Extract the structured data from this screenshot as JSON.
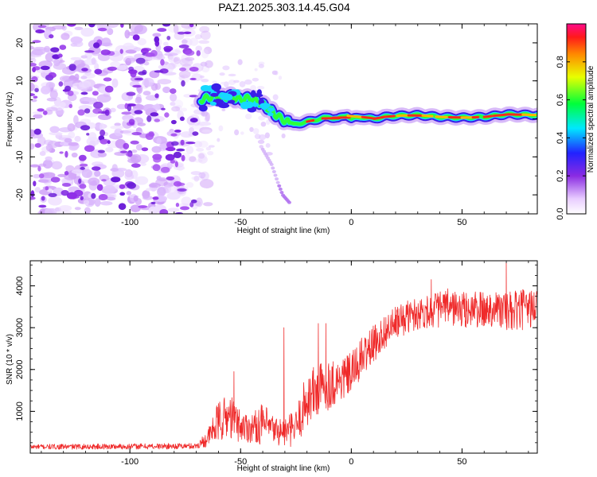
{
  "figure": {
    "title": "PAZ1.2025.303.14.45.G04"
  },
  "chart_data": [
    {
      "type": "heatmap",
      "name": "spectrogram",
      "xlabel": "Height of straight line (km)",
      "ylabel": "Frequency (Hz)",
      "xlim": [
        -145,
        84
      ],
      "ylim": [
        -25,
        25
      ],
      "xticks": [
        -100,
        -50,
        0,
        50
      ],
      "xtick_labels": [
        "-100",
        "-50",
        "0",
        "50"
      ],
      "yticks": [
        -20,
        -10,
        0,
        10,
        20
      ],
      "ytick_labels": [
        "-20",
        "-10",
        "0",
        "10",
        "20"
      ],
      "colorbar": {
        "label": "Normalized spectral amplitude",
        "range": [
          0,
          1
        ],
        "ticks": [
          0,
          0.2,
          0.4,
          0.6,
          0.8
        ],
        "tick_labels": [
          "0.0",
          "0.2",
          "0.4",
          "0.6",
          "0.8"
        ],
        "colormap": "rainbow (white-violet-blue-cyan-green-yellow-red-magenta)"
      },
      "noise_region": {
        "x": [
          -145,
          -68
        ],
        "y": [
          -25,
          25
        ],
        "amplitude": "0.05-0.25"
      },
      "signal_ridge": {
        "x": [
          -68,
          -62,
          -58,
          -55,
          -50,
          -46,
          -42,
          -38,
          -34,
          -30,
          -26,
          -22,
          -18,
          -14,
          -10,
          -6,
          -2,
          0,
          5,
          10,
          15,
          20,
          30,
          40,
          50,
          60,
          70,
          84
        ],
        "frequency": [
          5,
          6,
          5.5,
          6,
          5,
          5.5,
          4.5,
          3,
          1,
          -0.5,
          -1.5,
          -1,
          -0.5,
          0,
          0.5,
          0,
          1,
          0,
          0.5,
          0,
          0.5,
          0.8,
          1,
          0.5,
          0.3,
          0.5,
          1.2,
          1
        ],
        "peak_amplitude": 0.95
      },
      "secondary_trace": {
        "x": [
          -40,
          -36,
          -33,
          -31,
          -28
        ],
        "frequency": [
          -8,
          -12,
          -17,
          -20,
          -22
        ]
      }
    },
    {
      "type": "line",
      "name": "snr",
      "xlabel": "Height of straight line (km)",
      "ylabel": "SNR (10 * v/v)",
      "xlim": [
        -145,
        84
      ],
      "ylim": [
        0,
        4600
      ],
      "xticks": [
        -100,
        -50,
        0,
        50
      ],
      "xtick_labels": [
        "-100",
        "-50",
        "0",
        "50"
      ],
      "yticks": [
        1000,
        2000,
        3000,
        4000
      ],
      "ytick_labels": [
        "1000",
        "2000",
        "3000",
        "4000"
      ],
      "series": [
        {
          "color": "#ef2a2a",
          "envelope": {
            "x": [
              -145,
              -100,
              -70,
              -65,
              -60,
              -55,
              -50,
              -45,
              -40,
              -35,
              -30,
              -25,
              -20,
              -15,
              -10,
              -5,
              0,
              5,
              10,
              15,
              20,
              25,
              30,
              35,
              40,
              45,
              50,
              55,
              60,
              65,
              70,
              75,
              84
            ],
            "mean": [
              150,
              160,
              170,
              350,
              750,
              900,
              650,
              600,
              700,
              550,
              500,
              600,
              1300,
              1500,
              1650,
              1750,
              1900,
              2300,
              2600,
              2900,
              3100,
              3250,
              3350,
              3400,
              3450,
              3500,
              3400,
              3450,
              3400,
              3500,
              3350,
              3400,
              3500
            ],
            "spread": [
              60,
              70,
              70,
              200,
              500,
              550,
              400,
              350,
              500,
              350,
              350,
              450,
              700,
              700,
              600,
              550,
              500,
              500,
              450,
              400,
              400,
              400,
              400,
              400,
              450,
              450,
              450,
              450,
              450,
              450,
              500,
              500,
              450
            ]
          },
          "spikes": [
            {
              "x": -53,
              "y": 1950
            },
            {
              "x": -30.5,
              "y": 3000
            },
            {
              "x": -15,
              "y": 3100
            },
            {
              "x": -11.5,
              "y": 3100
            },
            {
              "x": 36,
              "y": 4150
            },
            {
              "x": 70,
              "y": 4550
            }
          ]
        }
      ]
    }
  ]
}
